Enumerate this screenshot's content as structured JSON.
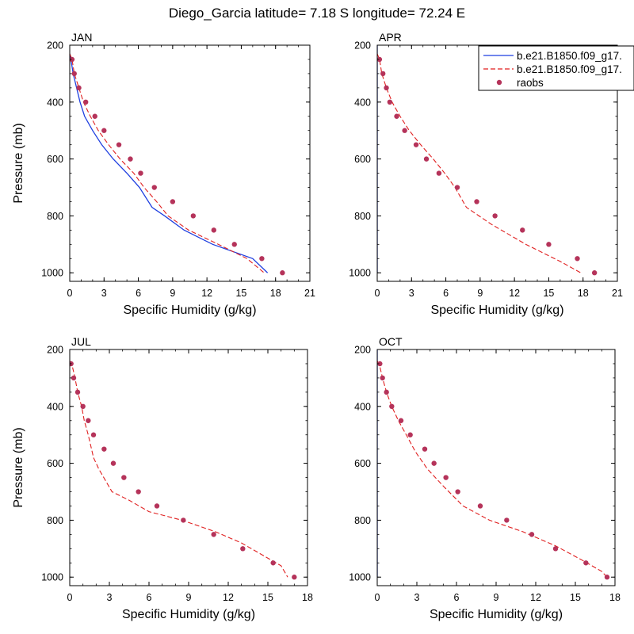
{
  "title": "Diego_Garcia  latitude= 7.18 S longitude= 72.24 E",
  "colors": {
    "model_1": "#1f3fe0",
    "model_2": "#e01f1f",
    "raobs": "#b5335a"
  },
  "legend": {
    "placement": "top-right of APR panel",
    "entries": [
      {
        "label": "b.e21.B1850.f09_g17.",
        "style": "solid",
        "color_key": "model_1"
      },
      {
        "label": "b.e21.B1850.f09_g17.",
        "style": "dashed",
        "color_key": "model_2"
      },
      {
        "label": "raobs",
        "style": "dot",
        "color_key": "raobs"
      }
    ]
  },
  "chart_data": [
    {
      "type": "line",
      "panel": "JAN",
      "xlabel": "Specific Humidity (g/kg)",
      "ylabel": "Pressure (mb)",
      "xlim": [
        0,
        21
      ],
      "ylim": [
        200,
        1030
      ],
      "y_inverted": true,
      "xticks": [
        0,
        3,
        6,
        9,
        12,
        15,
        18,
        21
      ],
      "yticks": [
        200,
        400,
        600,
        800,
        1000
      ],
      "grid": false,
      "series": [
        {
          "style": "solid",
          "points": [
            [
              0.0,
              230
            ],
            [
              0.1,
              250
            ],
            [
              0.3,
              300
            ],
            [
              0.6,
              350
            ],
            [
              0.9,
              400
            ],
            [
              1.3,
              450
            ],
            [
              2.0,
              500
            ],
            [
              2.8,
              550
            ],
            [
              3.8,
              600
            ],
            [
              5.0,
              650
            ],
            [
              6.1,
              700
            ],
            [
              7.2,
              770
            ],
            [
              8.3,
              800
            ],
            [
              10.0,
              850
            ],
            [
              12.5,
              900
            ],
            [
              16.0,
              950
            ],
            [
              17.3,
              1000
            ]
          ]
        },
        {
          "style": "dashed",
          "points": [
            [
              0.0,
              230
            ],
            [
              0.2,
              250
            ],
            [
              0.4,
              300
            ],
            [
              0.8,
              350
            ],
            [
              1.2,
              400
            ],
            [
              1.8,
              450
            ],
            [
              2.5,
              500
            ],
            [
              3.4,
              550
            ],
            [
              4.4,
              600
            ],
            [
              5.6,
              650
            ],
            [
              6.5,
              700
            ],
            [
              7.6,
              750
            ],
            [
              8.6,
              800
            ],
            [
              10.4,
              850
            ],
            [
              13.0,
              900
            ],
            [
              15.5,
              950
            ],
            [
              17.0,
              1000
            ]
          ]
        },
        {
          "style": "dot",
          "points": [
            [
              0.2,
              250
            ],
            [
              0.4,
              300
            ],
            [
              0.8,
              350
            ],
            [
              1.4,
              400
            ],
            [
              2.2,
              450
            ],
            [
              3.0,
              500
            ],
            [
              4.3,
              550
            ],
            [
              5.3,
              600
            ],
            [
              6.2,
              650
            ],
            [
              7.4,
              700
            ],
            [
              9.0,
              750
            ],
            [
              10.8,
              800
            ],
            [
              12.6,
              850
            ],
            [
              14.4,
              900
            ],
            [
              16.8,
              950
            ],
            [
              18.6,
              1000
            ]
          ]
        }
      ]
    },
    {
      "type": "line",
      "panel": "APR",
      "xlabel": "Specific Humidity (g/kg)",
      "ylabel": "",
      "xlim": [
        0,
        21
      ],
      "ylim": [
        200,
        1030
      ],
      "y_inverted": true,
      "xticks": [
        0,
        3,
        6,
        9,
        12,
        15,
        18,
        21
      ],
      "yticks": [
        200,
        400,
        600,
        800,
        1000
      ],
      "grid": false,
      "series": [
        {
          "style": "solid",
          "points": [
            [
              0.0,
              200
            ],
            [
              0.0,
              1000
            ]
          ]
        },
        {
          "style": "dashed",
          "points": [
            [
              0.0,
              230
            ],
            [
              0.2,
              250
            ],
            [
              0.4,
              300
            ],
            [
              0.8,
              350
            ],
            [
              1.3,
              400
            ],
            [
              2.0,
              450
            ],
            [
              2.8,
              500
            ],
            [
              3.8,
              550
            ],
            [
              4.9,
              600
            ],
            [
              5.9,
              650
            ],
            [
              6.8,
              700
            ],
            [
              7.8,
              770
            ],
            [
              10.0,
              830
            ],
            [
              13.0,
              900
            ],
            [
              16.0,
              960
            ],
            [
              17.8,
              1000
            ]
          ]
        },
        {
          "style": "dot",
          "points": [
            [
              0.2,
              250
            ],
            [
              0.5,
              300
            ],
            [
              0.8,
              350
            ],
            [
              1.1,
              400
            ],
            [
              1.7,
              450
            ],
            [
              2.4,
              500
            ],
            [
              3.4,
              550
            ],
            [
              4.3,
              600
            ],
            [
              5.4,
              650
            ],
            [
              7.0,
              700
            ],
            [
              8.7,
              750
            ],
            [
              10.3,
              800
            ],
            [
              12.7,
              850
            ],
            [
              15.0,
              900
            ],
            [
              17.5,
              950
            ],
            [
              19.0,
              1000
            ]
          ]
        }
      ]
    },
    {
      "type": "line",
      "panel": "JUL",
      "xlabel": "Specific Humidity (g/kg)",
      "ylabel": "Pressure (mb)",
      "xlim": [
        0,
        18
      ],
      "ylim": [
        200,
        1030
      ],
      "y_inverted": true,
      "xticks": [
        0,
        3,
        6,
        9,
        12,
        15,
        18
      ],
      "yticks": [
        200,
        400,
        600,
        800,
        1000
      ],
      "grid": false,
      "series": [
        {
          "style": "dashed",
          "points": [
            [
              0.0,
              240
            ],
            [
              0.2,
              260
            ],
            [
              0.4,
              300
            ],
            [
              0.6,
              350
            ],
            [
              0.9,
              400
            ],
            [
              1.1,
              450
            ],
            [
              1.4,
              500
            ],
            [
              1.8,
              580
            ],
            [
              2.2,
              620
            ],
            [
              3.2,
              700
            ],
            [
              4.5,
              730
            ],
            [
              6.0,
              770
            ],
            [
              8.5,
              800
            ],
            [
              11.0,
              840
            ],
            [
              13.0,
              880
            ],
            [
              14.5,
              920
            ],
            [
              16.0,
              960
            ],
            [
              16.5,
              1000
            ]
          ]
        },
        {
          "style": "dot",
          "points": [
            [
              0.1,
              250
            ],
            [
              0.3,
              300
            ],
            [
              0.6,
              350
            ],
            [
              1.0,
              400
            ],
            [
              1.4,
              450
            ],
            [
              1.8,
              500
            ],
            [
              2.6,
              550
            ],
            [
              3.3,
              600
            ],
            [
              4.1,
              650
            ],
            [
              5.2,
              700
            ],
            [
              6.6,
              750
            ],
            [
              8.6,
              800
            ],
            [
              10.9,
              850
            ],
            [
              13.1,
              900
            ],
            [
              15.4,
              950
            ],
            [
              17.0,
              1000
            ]
          ]
        }
      ]
    },
    {
      "type": "line",
      "panel": "OCT",
      "xlabel": "Specific Humidity (g/kg)",
      "ylabel": "",
      "xlim": [
        0,
        18
      ],
      "ylim": [
        200,
        1030
      ],
      "y_inverted": true,
      "xticks": [
        0,
        3,
        6,
        9,
        12,
        15,
        18
      ],
      "yticks": [
        200,
        400,
        600,
        800,
        1000
      ],
      "grid": false,
      "series": [
        {
          "style": "solid",
          "points": [
            [
              0.0,
              200
            ],
            [
              0.0,
              1000
            ]
          ]
        },
        {
          "style": "dashed",
          "points": [
            [
              0.0,
              240
            ],
            [
              0.2,
              260
            ],
            [
              0.4,
              300
            ],
            [
              0.7,
              350
            ],
            [
              1.1,
              400
            ],
            [
              1.6,
              450
            ],
            [
              2.2,
              500
            ],
            [
              2.9,
              560
            ],
            [
              3.8,
              620
            ],
            [
              5.0,
              680
            ],
            [
              6.5,
              750
            ],
            [
              8.5,
              800
            ],
            [
              11.0,
              840
            ],
            [
              13.5,
              890
            ],
            [
              15.5,
              940
            ],
            [
              17.0,
              980
            ],
            [
              17.4,
              1000
            ]
          ]
        },
        {
          "style": "dot",
          "points": [
            [
              0.2,
              250
            ],
            [
              0.4,
              300
            ],
            [
              0.7,
              350
            ],
            [
              1.1,
              400
            ],
            [
              1.8,
              450
            ],
            [
              2.5,
              500
            ],
            [
              3.6,
              550
            ],
            [
              4.3,
              600
            ],
            [
              5.2,
              650
            ],
            [
              6.1,
              700
            ],
            [
              7.8,
              750
            ],
            [
              9.8,
              800
            ],
            [
              11.7,
              850
            ],
            [
              13.5,
              900
            ],
            [
              15.8,
              950
            ],
            [
              17.4,
              1000
            ]
          ]
        }
      ]
    }
  ]
}
